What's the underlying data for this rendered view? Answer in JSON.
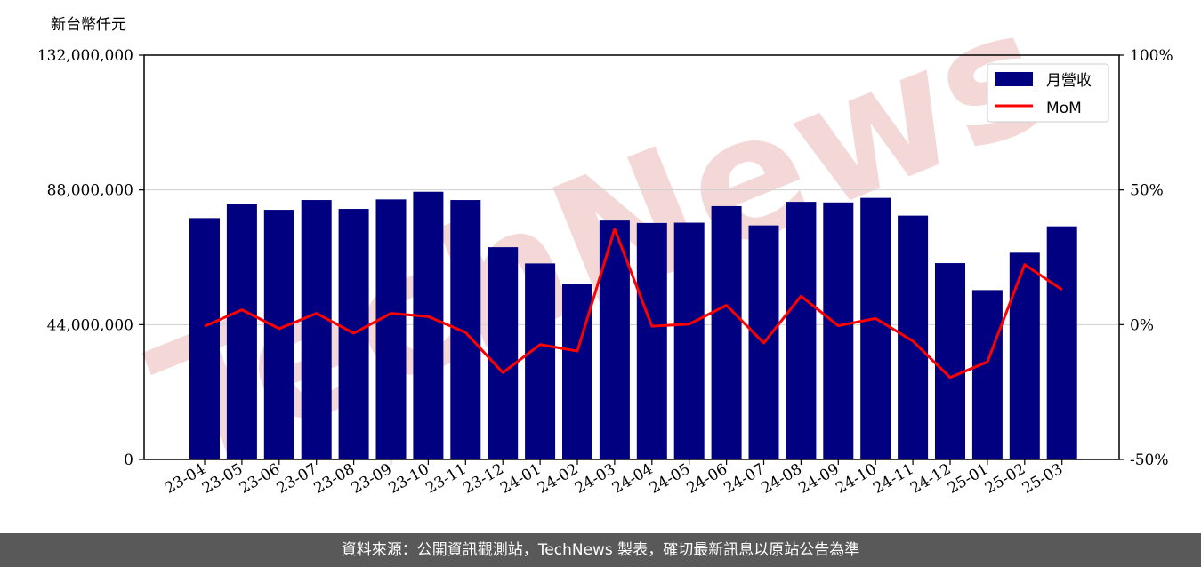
{
  "chart_data": {
    "type": "bar",
    "unit_label": "新台幣仟元",
    "categories": [
      "23-04",
      "23-05",
      "23-06",
      "23-07",
      "23-08",
      "23-09",
      "23-10",
      "23-11",
      "23-12",
      "24-01",
      "24-02",
      "24-03",
      "24-04",
      "24-05",
      "24-06",
      "24-07",
      "24-08",
      "24-09",
      "24-10",
      "24-11",
      "24-12",
      "25-01",
      "25-02",
      "25-03"
    ],
    "series": [
      {
        "name": "月營收",
        "type": "bar",
        "axis": "left",
        "color": "#000080",
        "values": [
          78800000,
          83300000,
          81500000,
          84700000,
          81800000,
          84900000,
          87400000,
          84700000,
          69300000,
          64000000,
          57400000,
          78000000,
          77200000,
          77300000,
          82700000,
          76400000,
          84100000,
          83900000,
          85400000,
          79600000,
          64100000,
          55300000,
          67500000,
          76100000
        ]
      },
      {
        "name": "MoM",
        "type": "line",
        "axis": "right",
        "color": "#ff0000",
        "values": [
          -0.6,
          5.5,
          -1.5,
          4.2,
          -3.2,
          4.2,
          3.0,
          -2.9,
          -17.8,
          -7.4,
          -9.8,
          35.5,
          -0.6,
          0.2,
          7.2,
          -6.8,
          10.6,
          -0.4,
          2.3,
          -6.1,
          -19.6,
          -13.8,
          22.3,
          13.0
        ]
      }
    ],
    "y_left": {
      "ylim": [
        0,
        132000000
      ],
      "ticks": [
        0,
        44000000,
        88000000,
        132000000
      ],
      "tick_labels": [
        "0",
        "44,000,000",
        "88,000,000",
        "132,000,000"
      ]
    },
    "y_right": {
      "ylim": [
        -50,
        100
      ],
      "ticks": [
        -50,
        0,
        50,
        100
      ],
      "tick_labels": [
        "-50%",
        "0%",
        "50%",
        "100%"
      ]
    },
    "grid": "horizontal",
    "legend": "top-right",
    "watermark": "TechNews",
    "watermark_color": "#f3d2d2",
    "footer": "資料來源：公開資訊觀測站，TechNews 製表，確切最新訊息以原站公告為準"
  }
}
